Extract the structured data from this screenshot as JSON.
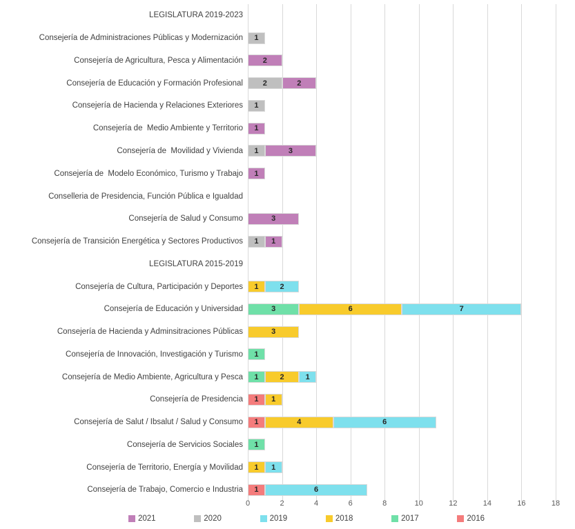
{
  "chart_data": {
    "type": "bar",
    "orientation": "horizontal",
    "stacked": true,
    "title": "",
    "xlabel": "",
    "ylabel": "",
    "xlim": [
      0,
      18
    ],
    "x_ticks": [
      0,
      2,
      4,
      6,
      8,
      10,
      12,
      14,
      16,
      18
    ],
    "grid": "vertical-only",
    "legend_position": "bottom",
    "colors": {
      "2021": "#C07FB8",
      "2020": "#BFBFBF",
      "2019": "#7EE0ED",
      "2018": "#F8CB2C",
      "2017": "#6FE0A8",
      "2016": "#F47C7C"
    },
    "legend": [
      {
        "label": "2021",
        "color": "#C07FB8"
      },
      {
        "label": "2020",
        "color": "#BFBFBF"
      },
      {
        "label": "2019",
        "color": "#7EE0ED"
      },
      {
        "label": "2018",
        "color": "#F8CB2C"
      },
      {
        "label": "2017",
        "color": "#6FE0A8"
      },
      {
        "label": "2016",
        "color": "#F47C7C"
      }
    ],
    "rows": [
      {
        "label": "LEGISLATURA 2019-2023",
        "header": true,
        "segments": []
      },
      {
        "label": "Consejería de Administraciones Públicas y Modernización",
        "header": false,
        "segments": [
          {
            "series": "2020",
            "value": 1
          }
        ]
      },
      {
        "label": "Consejería de Agricultura, Pesca y Alimentación",
        "header": false,
        "segments": [
          {
            "series": "2021",
            "value": 2
          }
        ]
      },
      {
        "label": "Consejería de Educación y Formación Profesional",
        "header": false,
        "segments": [
          {
            "series": "2020",
            "value": 2
          },
          {
            "series": "2021",
            "value": 2
          }
        ]
      },
      {
        "label": "Consejería de Hacienda y Relaciones Exteriores",
        "header": false,
        "segments": [
          {
            "series": "2020",
            "value": 1
          }
        ]
      },
      {
        "label": "Consejería de  Medio Ambiente y Territorio",
        "header": false,
        "segments": [
          {
            "series": "2021",
            "value": 1
          }
        ]
      },
      {
        "label": "Consejería de  Movilidad y Vivienda",
        "header": false,
        "segments": [
          {
            "series": "2020",
            "value": 1
          },
          {
            "series": "2021",
            "value": 3
          }
        ]
      },
      {
        "label": "Consejería de  Modelo Económico, Turismo y Trabajo",
        "header": false,
        "segments": [
          {
            "series": "2021",
            "value": 1
          }
        ]
      },
      {
        "label": "Conselleria de Presidencia, Función Pública e Igualdad",
        "header": false,
        "segments": []
      },
      {
        "label": "Consejería de Salud y Consumo",
        "header": false,
        "segments": [
          {
            "series": "2021",
            "value": 3
          }
        ]
      },
      {
        "label": "Consejería de Transición Energética y Sectores Productivos",
        "header": false,
        "segments": [
          {
            "series": "2020",
            "value": 1
          },
          {
            "series": "2021",
            "value": 1
          }
        ]
      },
      {
        "label": "LEGISLATURA 2015-2019",
        "header": true,
        "segments": []
      },
      {
        "label": "Consejería de Cultura, Participación y Deportes",
        "header": false,
        "segments": [
          {
            "series": "2018",
            "value": 1
          },
          {
            "series": "2019",
            "value": 2
          }
        ]
      },
      {
        "label": "Consejería de Educación y Universidad",
        "header": false,
        "segments": [
          {
            "series": "2017",
            "value": 3
          },
          {
            "series": "2018",
            "value": 6
          },
          {
            "series": "2019",
            "value": 7
          }
        ]
      },
      {
        "label": "Consejería de Hacienda y Adminsitraciones Públicas",
        "header": false,
        "segments": [
          {
            "series": "2018",
            "value": 3
          }
        ]
      },
      {
        "label": "Consejería de Innovación, Investigación y Turismo",
        "header": false,
        "segments": [
          {
            "series": "2017",
            "value": 1
          }
        ]
      },
      {
        "label": "Consejería de Medio Ambiente, Agricultura y Pesca",
        "header": false,
        "segments": [
          {
            "series": "2017",
            "value": 1
          },
          {
            "series": "2018",
            "value": 2
          },
          {
            "series": "2019",
            "value": 1
          }
        ]
      },
      {
        "label": "Consejería de Presidencia",
        "header": false,
        "segments": [
          {
            "series": "2016",
            "value": 1
          },
          {
            "series": "2018",
            "value": 1
          }
        ]
      },
      {
        "label": "Consejería de Salut / Ibsalut / Salud y Consumo",
        "header": false,
        "segments": [
          {
            "series": "2016",
            "value": 1
          },
          {
            "series": "2018",
            "value": 4
          },
          {
            "series": "2019",
            "value": 6
          }
        ]
      },
      {
        "label": "Consejería de Servicios Sociales",
        "header": false,
        "segments": [
          {
            "series": "2017",
            "value": 1
          }
        ]
      },
      {
        "label": "Consejería de Territorio, Energía y Movilidad",
        "header": false,
        "segments": [
          {
            "series": "2018",
            "value": 1
          },
          {
            "series": "2019",
            "value": 1
          }
        ]
      },
      {
        "label": "Consejería de Trabajo, Comercio e Industria",
        "header": false,
        "segments": [
          {
            "series": "2016",
            "value": 1
          },
          {
            "series": "2019",
            "value": 6
          }
        ]
      }
    ]
  }
}
